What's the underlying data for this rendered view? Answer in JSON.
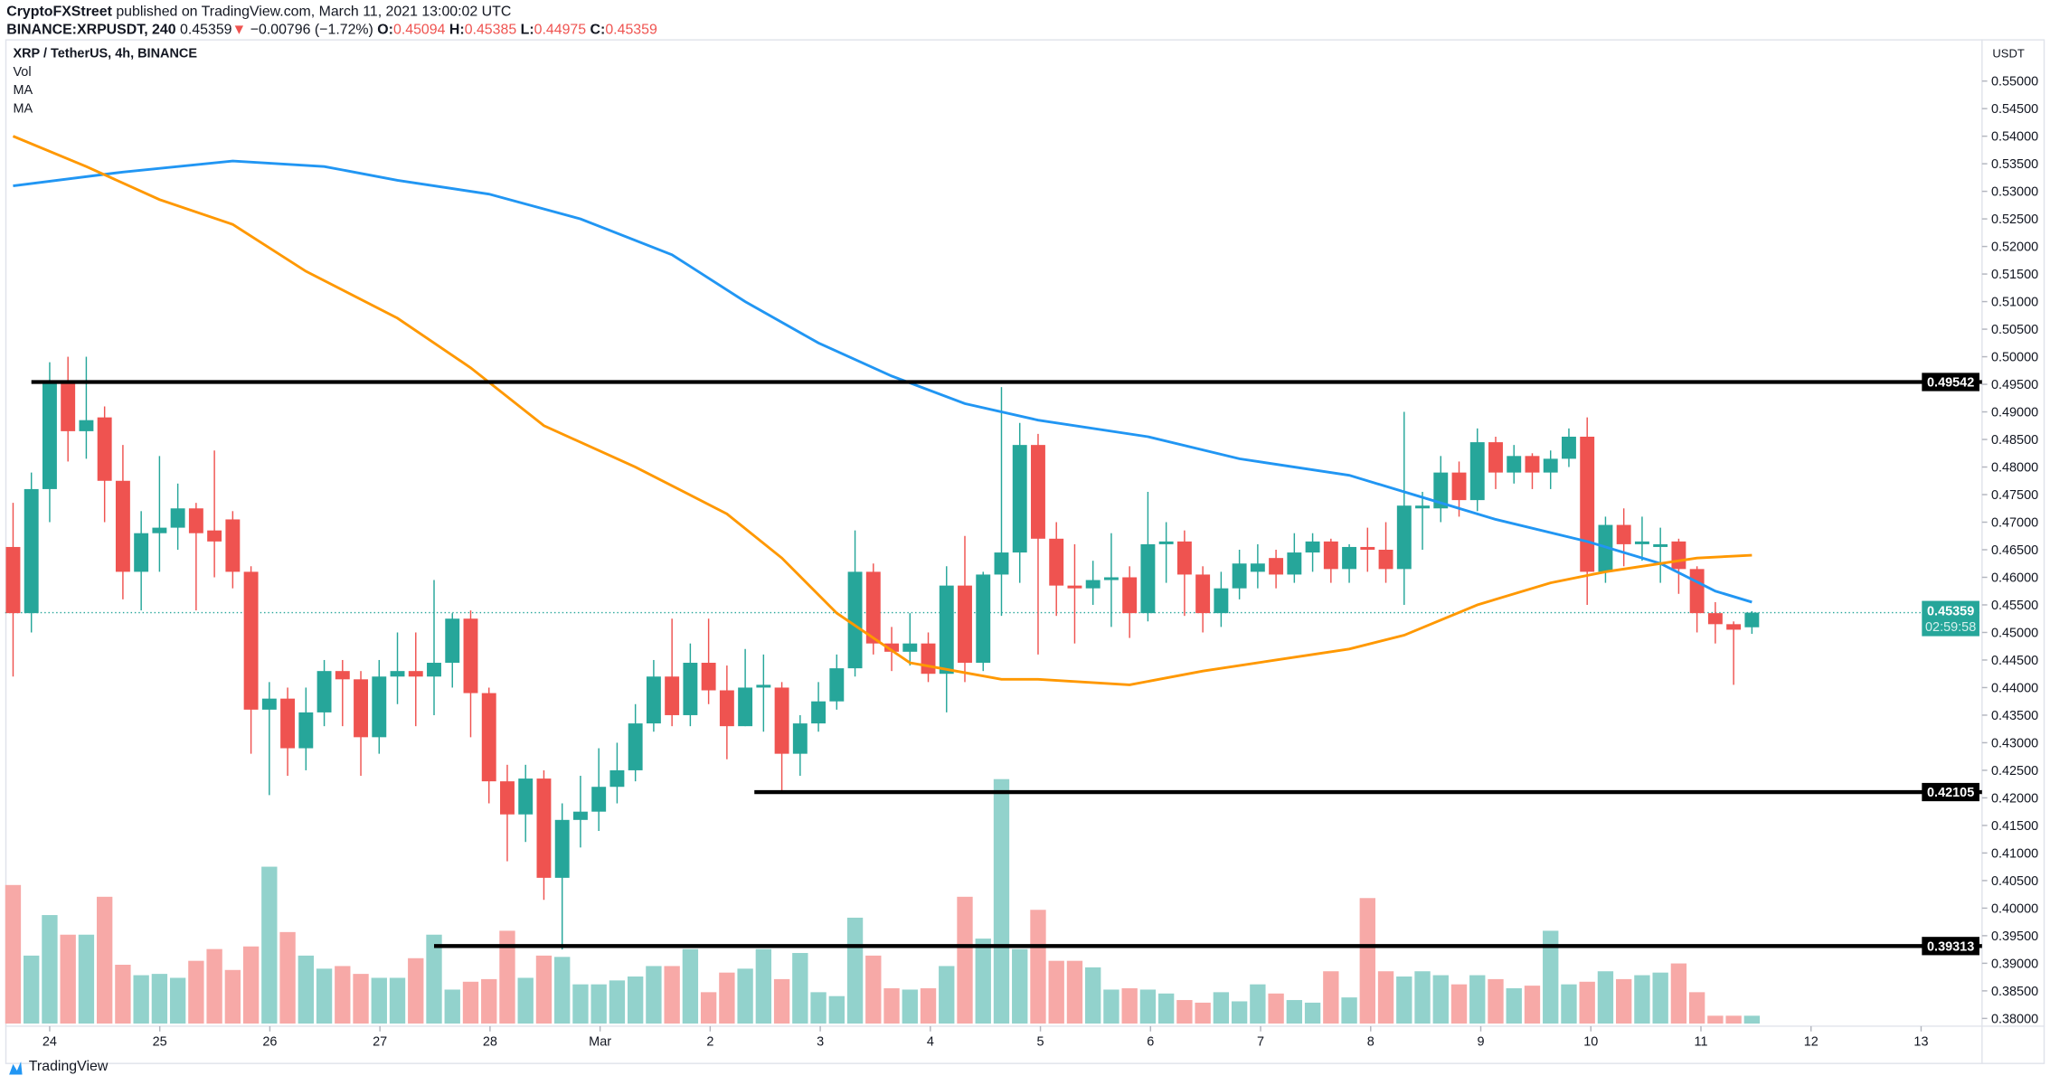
{
  "header": {
    "author": "CryptoFXStreet",
    "published": "published on TradingView.com, March 11, 2021 13:00:02 UTC",
    "symbol": "BINANCE:XRPUSDT, 240",
    "last": "0.45359",
    "change": "−0.00796 (−1.72%)",
    "o_label": "O:",
    "o": "0.45094",
    "h_label": "H:",
    "h": "0.45385",
    "l_label": "L:",
    "l": "0.44975",
    "c_label": "C:",
    "c": "0.45359"
  },
  "legend": {
    "title": "XRP / TetherUS, 4h, BINANCE",
    "vol": "Vol",
    "ma1": "MA",
    "ma2": "MA"
  },
  "footer": {
    "brand": "TradingView"
  },
  "colors": {
    "up": "#26a69a",
    "down": "#ef5350",
    "vol_up": "#92d2cc",
    "vol_down": "#f7a9a7",
    "ma_fast": "#ff9800",
    "ma_slow": "#2196f3",
    "level": "#000000"
  },
  "chart_data": {
    "type": "candlestick",
    "title": "XRP / TetherUS, 4h, BINANCE",
    "currency": "USDT",
    "ylim": [
      0.38,
      0.55
    ],
    "yticks": [
      "0.38000",
      "0.38500",
      "0.39000",
      "0.39500",
      "0.40000",
      "0.40500",
      "0.41000",
      "0.41500",
      "0.42000",
      "0.42500",
      "0.43000",
      "0.43500",
      "0.44000",
      "0.44500",
      "0.45000",
      "0.45500",
      "0.46000",
      "0.46500",
      "0.47000",
      "0.47500",
      "0.48000",
      "0.48500",
      "0.49000",
      "0.49500",
      "0.50000",
      "0.50500",
      "0.51000",
      "0.51500",
      "0.52000",
      "0.52500",
      "0.53000",
      "0.53500",
      "0.54000",
      "0.54500",
      "0.55000"
    ],
    "xticks": [
      {
        "label": "24",
        "day": 0
      },
      {
        "label": "25",
        "day": 1
      },
      {
        "label": "26",
        "day": 2
      },
      {
        "label": "27",
        "day": 3
      },
      {
        "label": "28",
        "day": 4
      },
      {
        "label": "Mar",
        "day": 5
      },
      {
        "label": "2",
        "day": 6
      },
      {
        "label": "3",
        "day": 7
      },
      {
        "label": "4",
        "day": 8
      },
      {
        "label": "5",
        "day": 9
      },
      {
        "label": "6",
        "day": 10
      },
      {
        "label": "7",
        "day": 11
      },
      {
        "label": "8",
        "day": 12
      },
      {
        "label": "9",
        "day": 13
      },
      {
        "label": "10",
        "day": 14
      },
      {
        "label": "11",
        "day": 15
      },
      {
        "label": "12",
        "day": 16
      },
      {
        "label": "13",
        "day": 17
      }
    ],
    "candles": [
      [
        0.4655,
        0.4735,
        0.442,
        0.4535
      ],
      [
        0.4535,
        0.479,
        0.45,
        0.476
      ],
      [
        0.476,
        0.499,
        0.47,
        0.4955
      ],
      [
        0.4955,
        0.5,
        0.481,
        0.4865
      ],
      [
        0.4865,
        0.5,
        0.4815,
        0.4885
      ],
      [
        0.489,
        0.491,
        0.47,
        0.4775
      ],
      [
        0.4775,
        0.484,
        0.456,
        0.461
      ],
      [
        0.461,
        0.472,
        0.454,
        0.468
      ],
      [
        0.468,
        0.482,
        0.461,
        0.469
      ],
      [
        0.469,
        0.477,
        0.465,
        0.4725
      ],
      [
        0.4725,
        0.4735,
        0.454,
        0.468
      ],
      [
        0.4685,
        0.483,
        0.46,
        0.4665
      ],
      [
        0.4705,
        0.472,
        0.458,
        0.461
      ],
      [
        0.461,
        0.462,
        0.428,
        0.436
      ],
      [
        0.436,
        0.441,
        0.4205,
        0.438
      ],
      [
        0.438,
        0.44,
        0.424,
        0.429
      ],
      [
        0.429,
        0.44,
        0.425,
        0.4355
      ],
      [
        0.4355,
        0.445,
        0.433,
        0.443
      ],
      [
        0.443,
        0.445,
        0.433,
        0.4415
      ],
      [
        0.4415,
        0.443,
        0.424,
        0.431
      ],
      [
        0.431,
        0.445,
        0.428,
        0.442
      ],
      [
        0.442,
        0.45,
        0.437,
        0.443
      ],
      [
        0.443,
        0.45,
        0.433,
        0.442
      ],
      [
        0.442,
        0.4595,
        0.435,
        0.4445
      ],
      [
        0.4445,
        0.4535,
        0.44,
        0.4525
      ],
      [
        0.4525,
        0.454,
        0.431,
        0.439
      ],
      [
        0.439,
        0.44,
        0.419,
        0.423
      ],
      [
        0.423,
        0.426,
        0.4085,
        0.417
      ],
      [
        0.417,
        0.426,
        0.412,
        0.4235
      ],
      [
        0.4235,
        0.425,
        0.4015,
        0.4055
      ],
      [
        0.4055,
        0.419,
        0.3925,
        0.416
      ],
      [
        0.416,
        0.424,
        0.411,
        0.4175
      ],
      [
        0.4175,
        0.429,
        0.414,
        0.422
      ],
      [
        0.422,
        0.43,
        0.419,
        0.425
      ],
      [
        0.425,
        0.437,
        0.423,
        0.4335
      ],
      [
        0.4335,
        0.445,
        0.432,
        0.442
      ],
      [
        0.442,
        0.4525,
        0.433,
        0.435
      ],
      [
        0.435,
        0.448,
        0.433,
        0.4445
      ],
      [
        0.4445,
        0.4525,
        0.437,
        0.4395
      ],
      [
        0.4395,
        0.444,
        0.427,
        0.433
      ],
      [
        0.433,
        0.447,
        0.433,
        0.44
      ],
      [
        0.44,
        0.446,
        0.432,
        0.4405
      ],
      [
        0.44,
        0.441,
        0.421,
        0.428
      ],
      [
        0.428,
        0.435,
        0.424,
        0.4335
      ],
      [
        0.4335,
        0.441,
        0.432,
        0.4375
      ],
      [
        0.4375,
        0.446,
        0.436,
        0.4435
      ],
      [
        0.4435,
        0.4685,
        0.442,
        0.461
      ],
      [
        0.461,
        0.4625,
        0.446,
        0.448
      ],
      [
        0.448,
        0.451,
        0.443,
        0.4465
      ],
      [
        0.4465,
        0.4535,
        0.444,
        0.448
      ],
      [
        0.448,
        0.45,
        0.441,
        0.4425
      ],
      [
        0.4425,
        0.462,
        0.4355,
        0.4585
      ],
      [
        0.4585,
        0.4675,
        0.441,
        0.4445
      ],
      [
        0.4445,
        0.461,
        0.443,
        0.4605
      ],
      [
        0.4605,
        0.4945,
        0.453,
        0.4645
      ],
      [
        0.4645,
        0.488,
        0.459,
        0.484
      ],
      [
        0.484,
        0.486,
        0.446,
        0.467
      ],
      [
        0.467,
        0.47,
        0.453,
        0.4585
      ],
      [
        0.4585,
        0.466,
        0.448,
        0.458
      ],
      [
        0.458,
        0.463,
        0.455,
        0.4595
      ],
      [
        0.4595,
        0.468,
        0.451,
        0.46
      ],
      [
        0.46,
        0.462,
        0.449,
        0.4535
      ],
      [
        0.4535,
        0.4755,
        0.452,
        0.466
      ],
      [
        0.466,
        0.47,
        0.459,
        0.4665
      ],
      [
        0.4665,
        0.4685,
        0.453,
        0.4605
      ],
      [
        0.4605,
        0.462,
        0.45,
        0.4535
      ],
      [
        0.4535,
        0.461,
        0.451,
        0.458
      ],
      [
        0.458,
        0.465,
        0.456,
        0.4625
      ],
      [
        0.461,
        0.466,
        0.458,
        0.4625
      ],
      [
        0.4635,
        0.465,
        0.458,
        0.4605
      ],
      [
        0.4605,
        0.468,
        0.459,
        0.4645
      ],
      [
        0.4645,
        0.468,
        0.461,
        0.4665
      ],
      [
        0.4665,
        0.467,
        0.459,
        0.4615
      ],
      [
        0.4615,
        0.466,
        0.459,
        0.4655
      ],
      [
        0.4655,
        0.469,
        0.461,
        0.465
      ],
      [
        0.465,
        0.47,
        0.459,
        0.4615
      ],
      [
        0.4615,
        0.49,
        0.455,
        0.473
      ],
      [
        0.4725,
        0.4755,
        0.465,
        0.473
      ],
      [
        0.4725,
        0.482,
        0.47,
        0.479
      ],
      [
        0.479,
        0.481,
        0.471,
        0.474
      ],
      [
        0.474,
        0.487,
        0.472,
        0.4845
      ],
      [
        0.4845,
        0.4855,
        0.476,
        0.479
      ],
      [
        0.479,
        0.484,
        0.477,
        0.482
      ],
      [
        0.482,
        0.4825,
        0.476,
        0.479
      ],
      [
        0.479,
        0.483,
        0.476,
        0.4815
      ],
      [
        0.4815,
        0.487,
        0.48,
        0.4855
      ],
      [
        0.4855,
        0.489,
        0.455,
        0.461
      ],
      [
        0.461,
        0.471,
        0.459,
        0.4695
      ],
      [
        0.4695,
        0.4725,
        0.462,
        0.466
      ],
      [
        0.466,
        0.471,
        0.463,
        0.4665
      ],
      [
        0.4655,
        0.469,
        0.459,
        0.466
      ],
      [
        0.4665,
        0.467,
        0.457,
        0.4615
      ],
      [
        0.4615,
        0.462,
        0.45,
        0.4535
      ],
      [
        0.4535,
        0.4555,
        0.448,
        0.4515
      ],
      [
        0.4515,
        0.452,
        0.4405,
        0.4505
      ],
      [
        0.45094,
        0.45385,
        0.44975,
        0.45359
      ]
    ],
    "candle_fields": [
      "open",
      "high",
      "low",
      "close"
    ],
    "volume_relative": [
      106,
      52,
      83,
      68,
      68,
      97,
      45,
      37,
      38,
      35,
      48,
      57,
      41,
      59,
      120,
      70,
      52,
      42,
      44,
      38,
      35,
      35,
      50,
      68,
      26,
      32,
      34,
      71,
      35,
      52,
      51,
      30,
      30,
      33,
      36,
      44,
      44,
      57,
      24,
      39,
      42,
      57,
      34,
      54,
      24,
      21,
      81,
      52,
      27,
      26,
      27,
      44,
      97,
      65,
      187,
      57,
      87,
      48,
      48,
      43,
      26,
      27,
      26,
      23,
      18,
      16,
      24,
      17,
      30,
      23,
      18,
      16,
      40,
      20,
      96,
      40,
      36,
      40,
      37,
      30,
      37,
      34,
      27,
      29,
      71,
      30,
      32,
      40,
      34,
      37,
      39,
      46,
      24,
      6,
      6,
      6
    ],
    "ma_fast": {
      "name": "MA",
      "points": [
        [
          0,
          0.54
        ],
        [
          4,
          0.5345
        ],
        [
          8,
          0.5285
        ],
        [
          12,
          0.524
        ],
        [
          16,
          0.5155
        ],
        [
          21,
          0.507
        ],
        [
          25,
          0.498
        ],
        [
          29,
          0.4875
        ],
        [
          34,
          0.48
        ],
        [
          39,
          0.4715
        ],
        [
          42,
          0.4635
        ],
        [
          45,
          0.4535
        ],
        [
          49,
          0.4445
        ],
        [
          54,
          0.4415
        ],
        [
          56,
          0.4415
        ],
        [
          61,
          0.4405
        ],
        [
          65,
          0.443
        ],
        [
          69,
          0.445
        ],
        [
          73,
          0.447
        ],
        [
          76,
          0.4495
        ],
        [
          80,
          0.455
        ],
        [
          84,
          0.459
        ],
        [
          87,
          0.461
        ],
        [
          92,
          0.4635
        ],
        [
          95,
          0.464
        ]
      ]
    },
    "ma_slow": {
      "name": "MA",
      "points": [
        [
          0,
          0.531
        ],
        [
          6,
          0.5335
        ],
        [
          12,
          0.5355
        ],
        [
          17,
          0.5345
        ],
        [
          21,
          0.532
        ],
        [
          26,
          0.5295
        ],
        [
          31,
          0.525
        ],
        [
          36,
          0.5185
        ],
        [
          40,
          0.51
        ],
        [
          44,
          0.5025
        ],
        [
          48,
          0.4965
        ],
        [
          52,
          0.4915
        ],
        [
          56,
          0.4885
        ],
        [
          62,
          0.4855
        ],
        [
          67,
          0.4815
        ],
        [
          73,
          0.4785
        ],
        [
          77,
          0.4745
        ],
        [
          81,
          0.4705
        ],
        [
          86,
          0.4665
        ],
        [
          90,
          0.4625
        ],
        [
          93,
          0.4575
        ],
        [
          95,
          0.4555
        ]
      ]
    },
    "levels": [
      {
        "value": "0.49542",
        "start": 1
      },
      {
        "value": "0.42105",
        "start": 40.5
      },
      {
        "value": "0.39313",
        "start": 23
      }
    ],
    "last_price": {
      "value": "0.45359",
      "countdown": "02:59:58"
    }
  }
}
